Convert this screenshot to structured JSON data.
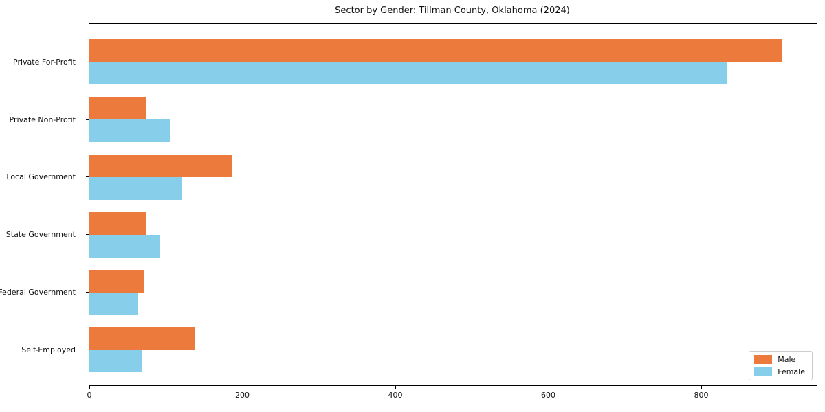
{
  "chart_data": {
    "type": "bar",
    "orientation": "horizontal",
    "title": "Sector by Gender: Tillman County, Oklahoma (2024)",
    "categories": [
      "Private For-Profit",
      "Private Non-Profit",
      "Local Government",
      "State Government",
      "Federal Government",
      "Self-Employed"
    ],
    "series": [
      {
        "name": "Male",
        "color": "#ec7a3d",
        "values": [
          905,
          75,
          186,
          75,
          71,
          138
        ]
      },
      {
        "name": "Female",
        "color": "#87ceeb",
        "values": [
          833,
          105,
          121,
          93,
          64,
          69
        ]
      }
    ],
    "xlabel": "",
    "ylabel": "",
    "xlim": [
      0,
      951
    ],
    "x_ticks": [
      0,
      200,
      400,
      600,
      800
    ],
    "grid": false,
    "legend": {
      "position": "lower right",
      "labels": [
        "Male",
        "Female"
      ]
    }
  }
}
